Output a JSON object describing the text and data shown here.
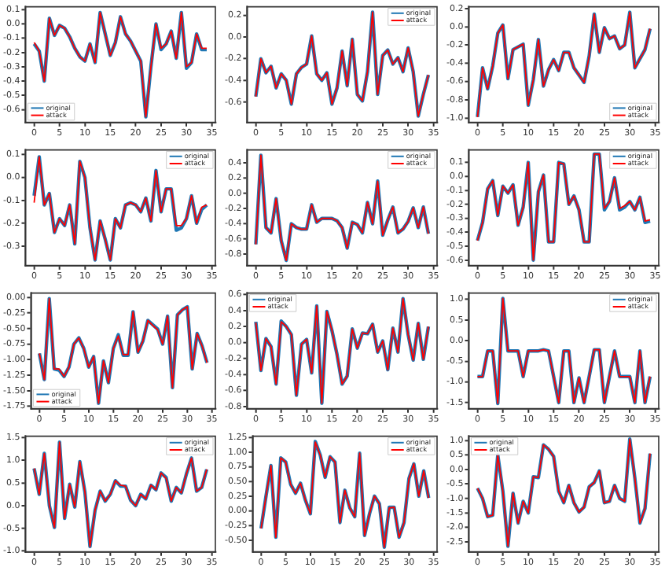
{
  "chart_data": [
    {
      "type": "line",
      "legend": "bottom left",
      "x": [
        0,
        1,
        2,
        3,
        4,
        5,
        6,
        7,
        8,
        9,
        10,
        11,
        12,
        13,
        14,
        15,
        16,
        17,
        18,
        19,
        20,
        21,
        22,
        23,
        24,
        25,
        26,
        27,
        28,
        29,
        30,
        31,
        32,
        33,
        34
      ],
      "xlim": [
        -1.7,
        35.7
      ],
      "xticks": [
        0,
        5,
        10,
        15,
        20,
        25,
        30,
        35
      ],
      "ylim": [
        -0.69,
        0.12
      ],
      "yticks": [
        0.1,
        {
          "value": 0,
          "label": "0.0"
        },
        -0.1,
        -0.2,
        -0.3,
        -0.4,
        -0.5,
        -0.6
      ],
      "series": [
        {
          "name": "original",
          "color": "#1f77b4",
          "values": [
            -0.14,
            -0.19,
            -0.4,
            0.04,
            -0.08,
            -0.01,
            -0.03,
            -0.09,
            -0.17,
            -0.23,
            -0.26,
            -0.14,
            -0.27,
            0.08,
            -0.07,
            -0.22,
            -0.13,
            0.05,
            -0.07,
            -0.12,
            -0.19,
            -0.26,
            -0.65,
            -0.3,
            0.0,
            -0.18,
            -0.14,
            -0.05,
            -0.24,
            0.08,
            -0.31,
            -0.27,
            -0.07,
            -0.18,
            -0.18
          ]
        },
        {
          "name": "attack",
          "color": "#ff0000",
          "values": [
            -0.13,
            -0.19,
            -0.4,
            0.04,
            -0.08,
            -0.01,
            -0.03,
            -0.09,
            -0.17,
            -0.23,
            -0.26,
            -0.14,
            -0.27,
            0.08,
            -0.07,
            -0.22,
            -0.13,
            0.05,
            -0.07,
            -0.12,
            -0.19,
            -0.26,
            -0.65,
            -0.3,
            0.0,
            -0.17,
            -0.14,
            -0.05,
            -0.24,
            0.08,
            -0.3,
            -0.27,
            -0.07,
            -0.17,
            -0.17
          ]
        }
      ]
    },
    {
      "type": "line",
      "legend": "top right",
      "x": [
        0,
        1,
        2,
        3,
        4,
        5,
        6,
        7,
        8,
        9,
        10,
        11,
        12,
        13,
        14,
        15,
        16,
        17,
        18,
        19,
        20,
        21,
        22,
        23,
        24,
        25,
        26,
        27,
        28,
        29,
        30,
        31,
        32,
        33,
        34
      ],
      "xlim": [
        -1.7,
        35.7
      ],
      "xticks": [
        0,
        5,
        10,
        15,
        20,
        25,
        30,
        35
      ],
      "ylim": [
        -0.79,
        0.28
      ],
      "yticks": [
        0.2,
        {
          "value": 0,
          "label": "0.0"
        },
        -0.2,
        -0.4,
        -0.6
      ],
      "series": [
        {
          "name": "original",
          "color": "#1f77b4",
          "values": [
            -0.55,
            -0.2,
            -0.33,
            -0.27,
            -0.47,
            -0.34,
            -0.4,
            -0.62,
            -0.34,
            -0.28,
            -0.25,
            0.01,
            -0.34,
            -0.4,
            -0.33,
            -0.62,
            -0.47,
            -0.13,
            -0.45,
            -0.02,
            -0.53,
            -0.59,
            -0.32,
            0.23,
            -0.53,
            -0.17,
            -0.12,
            -0.25,
            -0.19,
            -0.32,
            -0.1,
            -0.32,
            -0.73,
            -0.53,
            -0.35
          ]
        },
        {
          "name": "attack",
          "color": "#ff0000",
          "values": [
            -0.55,
            -0.2,
            -0.33,
            -0.27,
            -0.47,
            -0.34,
            -0.4,
            -0.62,
            -0.34,
            -0.28,
            -0.25,
            0.01,
            -0.34,
            -0.4,
            -0.33,
            -0.62,
            -0.47,
            -0.13,
            -0.45,
            -0.02,
            -0.53,
            -0.59,
            -0.32,
            0.23,
            -0.53,
            -0.17,
            -0.12,
            -0.25,
            -0.19,
            -0.32,
            -0.1,
            -0.32,
            -0.73,
            -0.53,
            -0.35
          ]
        }
      ]
    },
    {
      "type": "line",
      "legend": "bottom right",
      "x": [
        0,
        1,
        2,
        3,
        4,
        5,
        6,
        7,
        8,
        9,
        10,
        11,
        12,
        13,
        14,
        15,
        16,
        17,
        18,
        19,
        20,
        21,
        22,
        23,
        24,
        25,
        26,
        27,
        28,
        29,
        30,
        31,
        32,
        33,
        34
      ],
      "xlim": [
        -1.7,
        35.7
      ],
      "xticks": [
        0,
        5,
        10,
        15,
        20,
        25,
        30,
        35
      ],
      "ylim": [
        -1.05,
        0.22
      ],
      "yticks": [
        0.2,
        {
          "value": 0,
          "label": "0.0"
        },
        -0.2,
        -0.4,
        -0.6,
        -0.8,
        {
          "value": -1,
          "label": "-1.0"
        }
      ],
      "series": [
        {
          "name": "original",
          "color": "#1f77b4",
          "values": [
            -0.99,
            -0.45,
            -0.68,
            -0.43,
            -0.07,
            0.02,
            -0.57,
            -0.25,
            -0.22,
            -0.19,
            -0.86,
            -0.58,
            -0.14,
            -0.65,
            -0.47,
            -0.36,
            -0.48,
            -0.28,
            -0.28,
            -0.45,
            -0.53,
            -0.61,
            -0.32,
            0.14,
            -0.28,
            -0.01,
            -0.13,
            -0.1,
            -0.24,
            -0.2,
            0.16,
            -0.45,
            -0.35,
            -0.25,
            -0.02
          ]
        },
        {
          "name": "attack",
          "color": "#ff0000",
          "values": [
            -0.99,
            -0.45,
            -0.68,
            -0.43,
            -0.07,
            0.02,
            -0.57,
            -0.25,
            -0.22,
            -0.19,
            -0.86,
            -0.58,
            -0.14,
            -0.65,
            -0.47,
            -0.36,
            -0.48,
            -0.28,
            -0.28,
            -0.45,
            -0.53,
            -0.61,
            -0.32,
            0.14,
            -0.28,
            -0.01,
            -0.13,
            -0.1,
            -0.24,
            -0.2,
            0.16,
            -0.45,
            -0.35,
            -0.25,
            -0.02
          ]
        }
      ]
    },
    {
      "type": "line",
      "legend": "top right",
      "x": [
        0,
        1,
        2,
        3,
        4,
        5,
        6,
        7,
        8,
        9,
        10,
        11,
        12,
        13,
        14,
        15,
        16,
        17,
        18,
        19,
        20,
        21,
        22,
        23,
        24,
        25,
        26,
        27,
        28,
        29,
        30,
        31,
        32,
        33,
        34
      ],
      "xlim": [
        -1.7,
        35.7
      ],
      "xticks": [
        0,
        5,
        10,
        15,
        20,
        25,
        30,
        35
      ],
      "ylim": [
        -0.385,
        0.12
      ],
      "yticks": [
        0.1,
        {
          "value": 0,
          "label": "0.0"
        },
        -0.1,
        -0.2,
        -0.3
      ],
      "series": [
        {
          "name": "original",
          "color": "#1f77b4",
          "values": [
            -0.08,
            0.09,
            -0.12,
            -0.07,
            -0.24,
            -0.18,
            -0.21,
            -0.12,
            -0.29,
            0.07,
            0.0,
            -0.22,
            -0.36,
            -0.19,
            -0.27,
            -0.36,
            -0.18,
            -0.22,
            -0.12,
            -0.11,
            -0.12,
            -0.15,
            -0.09,
            -0.19,
            0.03,
            -0.15,
            -0.05,
            -0.05,
            -0.23,
            -0.22,
            -0.18,
            -0.08,
            -0.2,
            -0.14,
            -0.12
          ]
        },
        {
          "name": "attack",
          "color": "#ff0000",
          "values": [
            -0.11,
            0.09,
            -0.12,
            -0.07,
            -0.24,
            -0.18,
            -0.21,
            -0.12,
            -0.29,
            0.07,
            0.0,
            -0.22,
            -0.36,
            -0.19,
            -0.27,
            -0.36,
            -0.18,
            -0.22,
            -0.12,
            -0.11,
            -0.12,
            -0.15,
            -0.09,
            -0.19,
            0.03,
            -0.15,
            -0.05,
            -0.05,
            -0.21,
            -0.21,
            -0.18,
            -0.08,
            -0.2,
            -0.13,
            -0.12
          ]
        }
      ]
    },
    {
      "type": "line",
      "legend": "top right",
      "x": [
        0,
        1,
        2,
        3,
        4,
        5,
        6,
        7,
        8,
        9,
        10,
        11,
        12,
        13,
        14,
        15,
        16,
        17,
        18,
        19,
        20,
        21,
        22,
        23,
        24,
        25,
        26,
        27,
        28,
        29,
        30,
        31,
        32,
        33,
        34
      ],
      "xlim": [
        -1.7,
        35.7
      ],
      "xticks": [
        0,
        5,
        10,
        15,
        20,
        25,
        30,
        35
      ],
      "ylim": [
        -0.95,
        0.57
      ],
      "yticks": [
        0.4,
        0.2,
        {
          "value": 0,
          "label": "0.0"
        },
        -0.2,
        -0.4,
        -0.6,
        -0.8
      ],
      "series": [
        {
          "name": "original",
          "color": "#1f77b4",
          "values": [
            -0.67,
            0.5,
            -0.45,
            -0.52,
            -0.07,
            -0.62,
            -0.88,
            -0.4,
            -0.45,
            -0.47,
            -0.47,
            -0.15,
            -0.38,
            -0.33,
            -0.33,
            -0.33,
            -0.36,
            -0.45,
            -0.72,
            -0.38,
            -0.41,
            -0.52,
            -0.12,
            -0.4,
            0.16,
            -0.55,
            -0.35,
            -0.18,
            -0.52,
            -0.47,
            -0.37,
            -0.19,
            -0.45,
            -0.18,
            -0.53
          ]
        },
        {
          "name": "attack",
          "color": "#ff0000",
          "values": [
            -0.67,
            0.5,
            -0.45,
            -0.52,
            -0.07,
            -0.62,
            -0.88,
            -0.4,
            -0.45,
            -0.47,
            -0.47,
            -0.15,
            -0.38,
            -0.33,
            -0.33,
            -0.33,
            -0.36,
            -0.45,
            -0.72,
            -0.38,
            -0.41,
            -0.52,
            -0.12,
            -0.4,
            0.16,
            -0.55,
            -0.35,
            -0.18,
            -0.52,
            -0.47,
            -0.37,
            -0.19,
            -0.45,
            -0.18,
            -0.53
          ]
        }
      ]
    },
    {
      "type": "line",
      "legend": "top right",
      "x": [
        0,
        1,
        2,
        3,
        4,
        5,
        6,
        7,
        8,
        9,
        10,
        11,
        12,
        13,
        14,
        15,
        16,
        17,
        18,
        19,
        20,
        21,
        22,
        23,
        24,
        25,
        26,
        27,
        28,
        29,
        30,
        31,
        32,
        33,
        34
      ],
      "xlim": [
        -1.7,
        35.7
      ],
      "xticks": [
        0,
        5,
        10,
        15,
        20,
        25,
        30,
        35
      ],
      "ylim": [
        -0.64,
        0.19
      ],
      "yticks": [
        0.1,
        {
          "value": 0,
          "label": "0.0"
        },
        -0.1,
        -0.2,
        -0.3,
        -0.4,
        -0.5,
        -0.6
      ],
      "series": [
        {
          "name": "original",
          "color": "#1f77b4",
          "values": [
            -0.46,
            -0.33,
            -0.09,
            -0.03,
            -0.28,
            -0.07,
            -0.12,
            -0.06,
            -0.35,
            -0.22,
            0.1,
            -0.6,
            -0.11,
            0.01,
            -0.47,
            -0.47,
            0.1,
            0.09,
            -0.2,
            -0.14,
            -0.24,
            -0.47,
            -0.47,
            0.16,
            0.16,
            -0.24,
            -0.18,
            -0.01,
            -0.24,
            -0.22,
            -0.18,
            -0.24,
            -0.15,
            -0.33,
            -0.32
          ]
        },
        {
          "name": "attack",
          "color": "#ff0000",
          "values": [
            -0.46,
            -0.33,
            -0.09,
            -0.03,
            -0.28,
            -0.07,
            -0.12,
            -0.06,
            -0.35,
            -0.22,
            0.1,
            -0.6,
            -0.11,
            0.01,
            -0.47,
            -0.47,
            0.1,
            0.09,
            -0.2,
            -0.14,
            -0.24,
            -0.47,
            -0.47,
            0.16,
            0.16,
            -0.23,
            -0.18,
            -0.01,
            -0.23,
            -0.21,
            -0.18,
            -0.24,
            -0.15,
            -0.32,
            -0.31
          ]
        }
      ]
    },
    {
      "type": "line",
      "legend": "bottom left",
      "x": [
        0,
        1,
        2,
        3,
        4,
        5,
        6,
        7,
        8,
        9,
        10,
        11,
        12,
        13,
        14,
        15,
        16,
        17,
        18,
        19,
        20,
        21,
        22,
        23,
        24,
        25,
        26,
        27,
        28,
        29,
        30,
        31,
        32,
        33,
        34
      ],
      "xlim": [
        -1.7,
        35.7
      ],
      "xticks": [
        0,
        5,
        10,
        15,
        20,
        25,
        30,
        35
      ],
      "ylim": [
        -1.79,
        0.07
      ],
      "yticks": [
        {
          "value": 0,
          "label": "0.00"
        },
        -0.25,
        {
          "value": -0.5,
          "label": "-0.50"
        },
        -0.75,
        {
          "value": -1,
          "label": "-1.00"
        },
        -1.25,
        {
          "value": -1.5,
          "label": "-1.50"
        },
        -1.75
      ],
      "series": [
        {
          "name": "original",
          "color": "#1f77b4",
          "values": [
            -0.9,
            -1.32,
            -0.02,
            -1.15,
            -1.17,
            -1.27,
            -1.12,
            -0.75,
            -0.65,
            -0.82,
            -1.12,
            -0.95,
            -1.7,
            -1.02,
            -1.37,
            -0.82,
            -0.6,
            -0.93,
            -0.93,
            -0.23,
            -0.88,
            -0.7,
            -0.37,
            -0.44,
            -0.51,
            -0.75,
            -0.3,
            -1.45,
            -0.28,
            -0.2,
            -0.15,
            -1.15,
            -0.58,
            -0.78,
            -1.05
          ]
        },
        {
          "name": "attack",
          "color": "#ff0000",
          "values": [
            -0.9,
            -1.32,
            -0.02,
            -1.15,
            -1.15,
            -1.27,
            -1.12,
            -0.75,
            -0.65,
            -0.82,
            -1.12,
            -0.95,
            -1.7,
            -1.02,
            -1.37,
            -0.82,
            -0.62,
            -0.92,
            -0.92,
            -0.23,
            -0.88,
            -0.7,
            -0.37,
            -0.45,
            -0.52,
            -0.75,
            -0.3,
            -1.45,
            -0.28,
            -0.2,
            -0.15,
            -1.15,
            -0.58,
            -0.78,
            -1.05
          ]
        }
      ]
    },
    {
      "type": "line",
      "legend": "top left",
      "x": [
        0,
        1,
        2,
        3,
        4,
        5,
        6,
        7,
        8,
        9,
        10,
        11,
        12,
        13,
        14,
        15,
        16,
        17,
        18,
        19,
        20,
        21,
        22,
        23,
        24,
        25,
        26,
        27,
        28,
        29,
        30,
        31,
        32,
        33,
        34
      ],
      "xlim": [
        -1.7,
        35.7
      ],
      "xticks": [
        0,
        5,
        10,
        15,
        20,
        25,
        30,
        35
      ],
      "ylim": [
        -0.83,
        0.62
      ],
      "yticks": [
        0.6,
        0.4,
        0.2,
        {
          "value": 0,
          "label": "0.0"
        },
        -0.2,
        -0.4,
        -0.6,
        -0.8
      ],
      "series": [
        {
          "name": "original",
          "color": "#1f77b4",
          "values": [
            0.26,
            -0.35,
            0.05,
            -0.05,
            -0.52,
            0.27,
            0.2,
            0.1,
            -0.66,
            -0.02,
            0.04,
            -0.38,
            0.46,
            -0.76,
            0.39,
            0.15,
            -0.15,
            -0.52,
            -0.42,
            0.17,
            -0.07,
            0.12,
            0.11,
            0.23,
            -0.12,
            0.02,
            -0.34,
            0.18,
            -0.12,
            0.55,
            0.1,
            -0.22,
            0.24,
            -0.21,
            0.2
          ]
        },
        {
          "name": "attack",
          "color": "#ff0000",
          "values": [
            0.25,
            -0.35,
            0.05,
            -0.05,
            -0.52,
            0.26,
            0.2,
            0.1,
            -0.66,
            -0.02,
            0.04,
            -0.38,
            0.46,
            -0.76,
            0.39,
            0.15,
            -0.15,
            -0.52,
            -0.42,
            0.17,
            -0.07,
            0.12,
            0.11,
            0.23,
            -0.12,
            0.02,
            -0.34,
            0.18,
            -0.12,
            0.55,
            0.1,
            -0.22,
            0.24,
            -0.21,
            0.2
          ]
        }
      ]
    },
    {
      "type": "line",
      "legend": "top right",
      "x": [
        0,
        1,
        2,
        3,
        4,
        5,
        6,
        7,
        8,
        9,
        10,
        11,
        12,
        13,
        14,
        15,
        16,
        17,
        18,
        19,
        20,
        21,
        22,
        23,
        24,
        25,
        26,
        27,
        28,
        29,
        30,
        31,
        32,
        33,
        34
      ],
      "xlim": [
        -1.7,
        35.7
      ],
      "xticks": [
        0,
        5,
        10,
        15,
        20,
        25,
        30,
        35
      ],
      "ylim": [
        -1.65,
        1.15
      ],
      "yticks": [
        {
          "value": 1,
          "label": "1.0"
        },
        0.5,
        {
          "value": 0,
          "label": "0.0"
        },
        -0.5,
        {
          "value": -1,
          "label": "-1.0"
        },
        -1.5
      ],
      "series": [
        {
          "name": "original",
          "color": "#1f77b4",
          "values": [
            -0.87,
            -0.87,
            -0.25,
            -0.25,
            -1.52,
            1.02,
            -0.25,
            -0.25,
            -0.25,
            -0.87,
            -0.25,
            -0.25,
            -0.25,
            -0.22,
            -0.25,
            -0.87,
            -1.5,
            -0.25,
            -0.25,
            -1.5,
            -0.9,
            -1.5,
            -0.87,
            -0.22,
            -0.22,
            -1.5,
            -0.87,
            -0.25,
            -0.87,
            -0.87,
            -0.87,
            -1.5,
            -0.25,
            -1.5,
            -0.87
          ]
        },
        {
          "name": "attack",
          "color": "#ff0000",
          "values": [
            -0.87,
            -0.87,
            -0.25,
            -0.25,
            -1.52,
            1.02,
            -0.25,
            -0.25,
            -0.25,
            -0.87,
            -0.25,
            -0.25,
            -0.25,
            -0.22,
            -0.25,
            -0.87,
            -1.5,
            -0.25,
            -0.25,
            -1.5,
            -0.9,
            -1.5,
            -0.87,
            -0.22,
            -0.22,
            -1.5,
            -0.87,
            -0.25,
            -0.87,
            -0.87,
            -0.87,
            -1.5,
            -0.25,
            -1.5,
            -0.87
          ]
        }
      ]
    },
    {
      "type": "line",
      "legend": "top right",
      "x": [
        0,
        1,
        2,
        3,
        4,
        5,
        6,
        7,
        8,
        9,
        10,
        11,
        12,
        13,
        14,
        15,
        16,
        17,
        18,
        19,
        20,
        21,
        22,
        23,
        24,
        25,
        26,
        27,
        28,
        29,
        30,
        31,
        32,
        33,
        34
      ],
      "xlim": [
        -1.7,
        35.7
      ],
      "xticks": [
        0,
        5,
        10,
        15,
        20,
        25,
        30,
        35
      ],
      "ylim": [
        -1.02,
        1.53
      ],
      "yticks": [
        1.5,
        {
          "value": 1,
          "label": "1.0"
        },
        0.5,
        {
          "value": 0,
          "label": "0.0"
        },
        -0.5,
        {
          "value": -1,
          "label": "-1.0"
        }
      ],
      "series": [
        {
          "name": "original",
          "color": "#1f77b4",
          "values": [
            0.82,
            0.25,
            1.15,
            0.0,
            -0.48,
            1.4,
            -0.28,
            0.47,
            -0.03,
            0.97,
            0.3,
            -0.9,
            -0.1,
            0.32,
            0.1,
            0.25,
            0.55,
            0.43,
            0.43,
            0.12,
            0.0,
            0.25,
            0.15,
            0.45,
            0.35,
            0.72,
            0.62,
            0.1,
            0.4,
            0.28,
            0.7,
            1.05,
            0.32,
            0.4,
            0.8
          ]
        },
        {
          "name": "attack",
          "color": "#ff0000",
          "values": [
            0.82,
            0.25,
            1.15,
            0.0,
            -0.48,
            1.4,
            -0.28,
            0.47,
            -0.03,
            0.97,
            0.3,
            -0.9,
            -0.1,
            0.32,
            0.1,
            0.25,
            0.55,
            0.45,
            0.43,
            0.12,
            0.0,
            0.25,
            0.15,
            0.45,
            0.35,
            0.72,
            0.6,
            0.1,
            0.4,
            0.28,
            0.7,
            1.05,
            0.32,
            0.4,
            0.8
          ]
        }
      ]
    },
    {
      "type": "line",
      "legend": "top right",
      "x": [
        0,
        1,
        2,
        3,
        4,
        5,
        6,
        7,
        8,
        9,
        10,
        11,
        12,
        13,
        14,
        15,
        16,
        17,
        18,
        19,
        20,
        21,
        22,
        23,
        24,
        25,
        26,
        27,
        28,
        29,
        30,
        31,
        32,
        33,
        34
      ],
      "xlim": [
        -1.7,
        35.7
      ],
      "xticks": [
        0,
        5,
        10,
        15,
        20,
        25,
        30,
        35
      ],
      "ylim": [
        -0.7,
        1.27
      ],
      "yticks": [
        1.25,
        {
          "value": 1,
          "label": "1.00"
        },
        0.75,
        {
          "value": 0.5,
          "label": "0.50"
        },
        0.25,
        {
          "value": 0,
          "label": "0.00"
        },
        -0.25,
        {
          "value": -0.5,
          "label": "-0.50"
        }
      ],
      "series": [
        {
          "name": "original",
          "color": "#1f77b4",
          "values": [
            -0.3,
            0.25,
            0.77,
            -0.45,
            0.9,
            0.83,
            0.45,
            0.3,
            0.47,
            0.18,
            -0.05,
            1.18,
            0.95,
            0.57,
            0.92,
            0.83,
            -0.2,
            0.35,
            0.05,
            -0.1,
            0.98,
            -0.42,
            -0.05,
            0.25,
            0.12,
            -0.62,
            0.06,
            0.06,
            -0.45,
            -0.2,
            0.55,
            0.8,
            0.25,
            0.68,
            0.22
          ]
        },
        {
          "name": "attack",
          "color": "#ff0000",
          "values": [
            -0.3,
            0.25,
            0.77,
            -0.45,
            0.9,
            0.83,
            0.45,
            0.3,
            0.47,
            0.18,
            -0.05,
            1.17,
            0.95,
            0.57,
            0.92,
            0.83,
            -0.2,
            0.35,
            0.05,
            -0.1,
            0.98,
            -0.42,
            -0.05,
            0.25,
            0.12,
            -0.62,
            0.05,
            0.06,
            -0.45,
            -0.2,
            0.55,
            0.8,
            0.25,
            0.68,
            0.22
          ]
        }
      ]
    },
    {
      "type": "line",
      "legend": "top left",
      "x": [
        0,
        1,
        2,
        3,
        4,
        5,
        6,
        7,
        8,
        9,
        10,
        11,
        12,
        13,
        14,
        15,
        16,
        17,
        18,
        19,
        20,
        21,
        22,
        23,
        24,
        25,
        26,
        27,
        28,
        29,
        30,
        31,
        32,
        33,
        34
      ],
      "xlim": [
        -1.7,
        35.7
      ],
      "xticks": [
        0,
        5,
        10,
        15,
        20,
        25,
        30,
        35
      ],
      "ylim": [
        -2.85,
        1.15
      ],
      "yticks": [
        {
          "value": 1,
          "label": "1.0"
        },
        0.5,
        {
          "value": 0,
          "label": "0.0"
        },
        -0.5,
        {
          "value": -1,
          "label": "-1.0"
        },
        -1.5,
        {
          "value": -2,
          "label": "-2.0"
        },
        -2.5
      ],
      "series": [
        {
          "name": "original",
          "color": "#1f77b4",
          "values": [
            -0.65,
            -1.0,
            -1.63,
            -1.58,
            0.5,
            -0.75,
            -2.65,
            -0.82,
            -1.85,
            -1.1,
            -1.5,
            -0.25,
            -0.28,
            0.85,
            0.7,
            0.45,
            -0.75,
            -1.15,
            -0.55,
            -1.15,
            -1.47,
            -1.3,
            -0.6,
            -0.45,
            -0.05,
            -1.15,
            -1.1,
            -0.55,
            -1.0,
            -1.1,
            1.05,
            -0.3,
            -1.85,
            -1.35,
            0.55
          ]
        },
        {
          "name": "attack",
          "color": "#ff0000",
          "values": [
            -0.65,
            -1.0,
            -1.63,
            -1.58,
            0.5,
            -0.75,
            -2.65,
            -0.82,
            -1.85,
            -1.1,
            -1.5,
            -0.25,
            -0.28,
            0.85,
            0.7,
            0.45,
            -0.75,
            -1.15,
            -0.55,
            -1.15,
            -1.47,
            -1.3,
            -0.6,
            -0.45,
            -0.05,
            -1.15,
            -1.1,
            -0.55,
            -1.0,
            -1.1,
            1.05,
            -0.3,
            -1.85,
            -1.35,
            0.55
          ]
        }
      ]
    }
  ]
}
